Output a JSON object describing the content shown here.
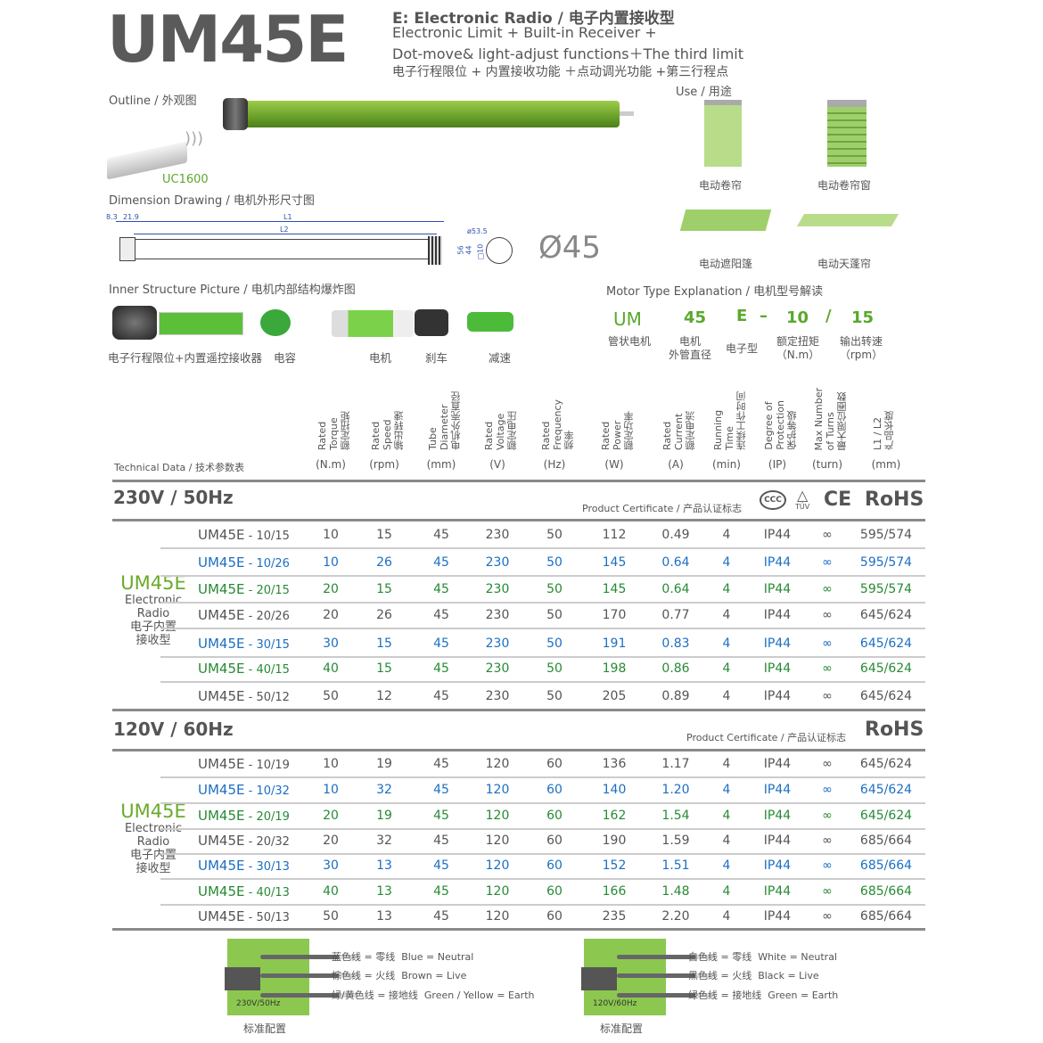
{
  "header": {
    "model": "UM45E",
    "type_line": "E: Electronic Radio / 电子内置接收型",
    "desc_1": "Electronic Limit + Built-in Receiver +",
    "desc_2": "Dot-move& light-adjust functions＋The third limit",
    "desc_cn": "电子行程限位 + 内置接收功能 ＋点动调光功能 +第三行程点"
  },
  "outline": {
    "title": "Outline / 外观图",
    "remote_label": "UC1600"
  },
  "use": {
    "title": "Use / 用途",
    "items": [
      "电动卷帘",
      "电动卷帘窗",
      "电动遮阳篷",
      "电动天蓬帘"
    ]
  },
  "dimension": {
    "title": "Dimension Drawing / 电机外形尺寸图",
    "labels": [
      "8.3",
      "21.9",
      "L1",
      "L2",
      "ø53.5",
      "56",
      "44",
      "□10"
    ],
    "diameter": "Ø45"
  },
  "inner": {
    "title": "Inner Structure Picture / 电机内部结构爆炸图",
    "parts": [
      "电子行程限位+内置遥控接收器",
      "电容",
      "电机",
      "刹车",
      "减速"
    ]
  },
  "motor_type": {
    "title": "Motor Type Explanation / 电机型号解读",
    "codes": [
      "UM",
      "45",
      "E",
      "–",
      "10",
      "/",
      "15"
    ],
    "meanings": [
      "管状电机",
      "电机\n外管直径",
      "电子型",
      "额定扭矩\n（N.m）",
      "输出转速\n（rpm）"
    ]
  },
  "tech": {
    "title": "Technical Data / 技术参数表",
    "columns": [
      {
        "en": "Rated\nTorque",
        "cn": "额定扭矩",
        "unit": "(N.m)"
      },
      {
        "en": "Rated\nSpeed",
        "cn": "输出转速",
        "unit": "(rpm)"
      },
      {
        "en": "Tube\nDiameter",
        "cn": "电机外壳直径",
        "unit": "(mm)"
      },
      {
        "en": "Rated\nVoltage",
        "cn": "额定电压",
        "unit": "(V)"
      },
      {
        "en": "Rated\nFrequency",
        "cn": "频率",
        "unit": "(Hz)"
      },
      {
        "en": "Rated\nPower",
        "cn": "额定功率",
        "unit": "(W)"
      },
      {
        "en": "Rated\nCurrent",
        "cn": "额定电流",
        "unit": "(A)"
      },
      {
        "en": "Running\nTime",
        "cn": "连续工作时间",
        "unit": "(min)"
      },
      {
        "en": "Degree of\nProtection",
        "cn": "保护等级",
        "unit": "(IP)"
      },
      {
        "en": "Max Number\nof Turns",
        "cn": "最大限位圈数",
        "unit": "(turn)"
      },
      {
        "en": "L1 / L2",
        "cn": "产品长度",
        "unit": "(mm)"
      }
    ]
  },
  "sections": [
    {
      "title": "230V / 50Hz",
      "cert_label": "Product Certificate / 产品认证标志",
      "certs": [
        "CCC",
        "TÜV",
        "CE",
        "RoHS"
      ],
      "side": {
        "model": "UM45E",
        "lines": [
          "Electronic",
          "Radio",
          "电子内置",
          "接收型"
        ]
      },
      "rows": [
        {
          "model": "UM45E",
          "variant": " - 10/15",
          "color": "gray",
          "values": [
            "10",
            "15",
            "45",
            "230",
            "50",
            "112",
            "0.49",
            "4",
            "IP44",
            "∞",
            "595/574"
          ]
        },
        {
          "model": "UM45E",
          "variant": " - 10/26",
          "color": "blue",
          "values": [
            "10",
            "26",
            "45",
            "230",
            "50",
            "145",
            "0.64",
            "4",
            "IP44",
            "∞",
            "595/574"
          ]
        },
        {
          "model": "UM45E",
          "variant": " - 20/15",
          "color": "green",
          "values": [
            "20",
            "15",
            "45",
            "230",
            "50",
            "145",
            "0.64",
            "4",
            "IP44",
            "∞",
            "595/574"
          ]
        },
        {
          "model": "UM45E",
          "variant": " - 20/26",
          "color": "gray",
          "values": [
            "20",
            "26",
            "45",
            "230",
            "50",
            "170",
            "0.77",
            "4",
            "IP44",
            "∞",
            "645/624"
          ]
        },
        {
          "model": "UM45E",
          "variant": " - 30/15",
          "color": "blue",
          "values": [
            "30",
            "15",
            "45",
            "230",
            "50",
            "191",
            "0.83",
            "4",
            "IP44",
            "∞",
            "645/624"
          ]
        },
        {
          "model": "UM45E",
          "variant": " - 40/15",
          "color": "green",
          "values": [
            "40",
            "15",
            "45",
            "230",
            "50",
            "198",
            "0.86",
            "4",
            "IP44",
            "∞",
            "645/624"
          ]
        },
        {
          "model": "UM45E",
          "variant": " - 50/12",
          "color": "gray",
          "values": [
            "50",
            "12",
            "45",
            "230",
            "50",
            "205",
            "0.89",
            "4",
            "IP44",
            "∞",
            "645/624"
          ]
        }
      ]
    },
    {
      "title": "120V / 60Hz",
      "cert_label": "Product Certificate / 产品认证标志",
      "certs": [
        "RoHS"
      ],
      "side": {
        "model": "UM45E",
        "lines": [
          "Electronic",
          "Radio",
          "电子内置",
          "接收型"
        ]
      },
      "rows": [
        {
          "model": "UM45E",
          "variant": " - 10/19",
          "color": "gray",
          "values": [
            "10",
            "19",
            "45",
            "120",
            "60",
            "136",
            "1.17",
            "4",
            "IP44",
            "∞",
            "645/624"
          ]
        },
        {
          "model": "UM45E",
          "variant": " - 10/32",
          "color": "blue",
          "values": [
            "10",
            "32",
            "45",
            "120",
            "60",
            "140",
            "1.20",
            "4",
            "IP44",
            "∞",
            "645/624"
          ]
        },
        {
          "model": "UM45E",
          "variant": " - 20/19",
          "color": "green",
          "values": [
            "20",
            "19",
            "45",
            "120",
            "60",
            "162",
            "1.54",
            "4",
            "IP44",
            "∞",
            "645/624"
          ]
        },
        {
          "model": "UM45E",
          "variant": " - 20/32",
          "color": "gray",
          "values": [
            "20",
            "32",
            "45",
            "120",
            "60",
            "190",
            "1.59",
            "4",
            "IP44",
            "∞",
            "685/664"
          ]
        },
        {
          "model": "UM45E",
          "variant": " - 30/13",
          "color": "blue",
          "values": [
            "30",
            "13",
            "45",
            "120",
            "60",
            "152",
            "1.51",
            "4",
            "IP44",
            "∞",
            "685/664"
          ]
        },
        {
          "model": "UM45E",
          "variant": " - 40/13",
          "color": "green",
          "values": [
            "40",
            "13",
            "45",
            "120",
            "60",
            "166",
            "1.48",
            "4",
            "IP44",
            "∞",
            "685/664"
          ]
        },
        {
          "model": "UM45E",
          "variant": " - 50/13",
          "color": "gray",
          "values": [
            "50",
            "13",
            "45",
            "120",
            "60",
            "235",
            "2.20",
            "4",
            "IP44",
            "∞",
            "685/664"
          ]
        }
      ]
    }
  ],
  "wiring": [
    {
      "badge": "230V/50Hz",
      "caption": "标准配置",
      "lines": [
        "蓝色线 = 零线  Blue = Neutral",
        "棕色线 = 火线  Brown = Live",
        "绿/黄色线 = 接地线  Green / Yellow = Earth"
      ]
    },
    {
      "badge": "120V/60Hz",
      "caption": "标准配置",
      "lines": [
        "白色线 = 零线  White = Neutral",
        "黑色线 = 火线  Black = Live",
        "绿色线 = 接地线  Green = Earth"
      ]
    }
  ],
  "colors": {
    "brand_green": "#6aaa2a",
    "row_blue": "#1c6fc2",
    "row_green": "#278a34",
    "text_gray": "#555555"
  }
}
